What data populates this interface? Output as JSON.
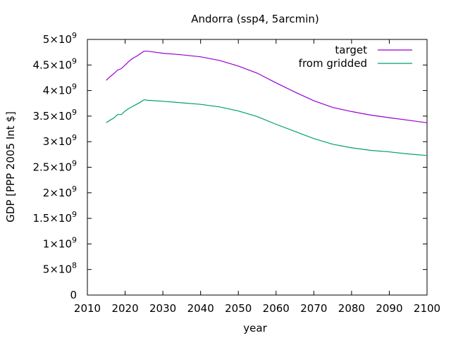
{
  "chart_data": {
    "type": "line",
    "title": "Andorra (ssp4, 5arcmin)",
    "xlabel": "year",
    "ylabel": "GDP [PPP 2005 Int $]",
    "xlim": [
      2010,
      2100
    ],
    "ylim": [
      0,
      5000000000
    ],
    "x_ticks": [
      2010,
      2020,
      2030,
      2040,
      2050,
      2060,
      2070,
      2080,
      2090,
      2100
    ],
    "x_tick_labels": [
      "2010",
      "2020",
      "2030",
      "2040",
      "2050",
      "2060",
      "2070",
      "2080",
      "2090",
      "2100"
    ],
    "y_ticks": [
      {
        "value": 0,
        "mant": "0",
        "exp": ""
      },
      {
        "value": 500000000,
        "mant": "5×10",
        "exp": "8"
      },
      {
        "value": 1000000000,
        "mant": "1×10",
        "exp": "9"
      },
      {
        "value": 1500000000,
        "mant": "1.5×10",
        "exp": "9"
      },
      {
        "value": 2000000000,
        "mant": "2×10",
        "exp": "9"
      },
      {
        "value": 2500000000,
        "mant": "2.5×10",
        "exp": "9"
      },
      {
        "value": 3000000000,
        "mant": "3×10",
        "exp": "9"
      },
      {
        "value": 3500000000,
        "mant": "3.5×10",
        "exp": "9"
      },
      {
        "value": 4000000000,
        "mant": "4×10",
        "exp": "9"
      },
      {
        "value": 4500000000,
        "mant": "4.5×10",
        "exp": "9"
      },
      {
        "value": 5000000000,
        "mant": "5×10",
        "exp": "9"
      }
    ],
    "grid": false,
    "legend_position": "top-right",
    "series": [
      {
        "name": "target",
        "color": "#9400d3",
        "points": [
          [
            2015,
            4200000000.0
          ],
          [
            2016,
            4270000000.0
          ],
          [
            2017,
            4330000000.0
          ],
          [
            2018,
            4400000000.0
          ],
          [
            2019,
            4430000000.0
          ],
          [
            2020,
            4500000000.0
          ],
          [
            2021,
            4570000000.0
          ],
          [
            2022,
            4630000000.0
          ],
          [
            2023,
            4670000000.0
          ],
          [
            2024,
            4720000000.0
          ],
          [
            2025,
            4770000000.0
          ],
          [
            2026,
            4770000000.0
          ],
          [
            2028,
            4750000000.0
          ],
          [
            2030,
            4730000000.0
          ],
          [
            2035,
            4700000000.0
          ],
          [
            2040,
            4660000000.0
          ],
          [
            2045,
            4590000000.0
          ],
          [
            2050,
            4480000000.0
          ],
          [
            2055,
            4340000000.0
          ],
          [
            2060,
            4150000000.0
          ],
          [
            2065,
            3970000000.0
          ],
          [
            2070,
            3800000000.0
          ],
          [
            2075,
            3670000000.0
          ],
          [
            2080,
            3590000000.0
          ],
          [
            2085,
            3520000000.0
          ],
          [
            2090,
            3470000000.0
          ],
          [
            2095,
            3420000000.0
          ],
          [
            2100,
            3370000000.0
          ]
        ]
      },
      {
        "name": "from gridded",
        "color": "#009e73",
        "points": [
          [
            2015,
            3370000000.0
          ],
          [
            2016,
            3420000000.0
          ],
          [
            2017,
            3460000000.0
          ],
          [
            2018,
            3530000000.0
          ],
          [
            2019,
            3530000000.0
          ],
          [
            2020,
            3600000000.0
          ],
          [
            2021,
            3650000000.0
          ],
          [
            2022,
            3690000000.0
          ],
          [
            2023,
            3730000000.0
          ],
          [
            2024,
            3770000000.0
          ],
          [
            2025,
            3820000000.0
          ],
          [
            2026,
            3810000000.0
          ],
          [
            2028,
            3800000000.0
          ],
          [
            2030,
            3790000000.0
          ],
          [
            2035,
            3760000000.0
          ],
          [
            2040,
            3730000000.0
          ],
          [
            2045,
            3680000000.0
          ],
          [
            2050,
            3600000000.0
          ],
          [
            2055,
            3490000000.0
          ],
          [
            2060,
            3340000000.0
          ],
          [
            2065,
            3200000000.0
          ],
          [
            2070,
            3060000000.0
          ],
          [
            2075,
            2950000000.0
          ],
          [
            2080,
            2880000000.0
          ],
          [
            2085,
            2830000000.0
          ],
          [
            2090,
            2800000000.0
          ],
          [
            2095,
            2760000000.0
          ],
          [
            2100,
            2730000000.0
          ]
        ]
      }
    ]
  }
}
